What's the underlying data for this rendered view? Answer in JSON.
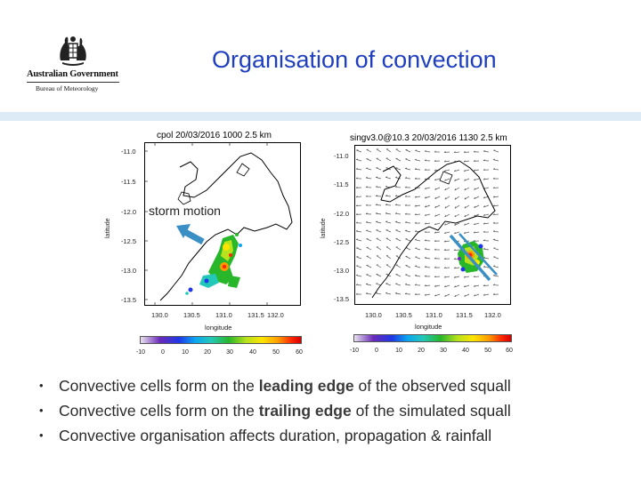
{
  "logo": {
    "name": "Australian Government",
    "agency": "Bureau of Meteorology",
    "icon": "coat-of-arms-icon"
  },
  "slide": {
    "title": "Organisation of convection"
  },
  "figures": {
    "left": {
      "title": "cpol 20/03/2016 1000 2.5 km",
      "ylabel": "latitude",
      "xlabel": "longitude",
      "yticks": [
        "-11.0",
        "-11.5",
        "-12.0",
        "-12.5",
        "-13.0",
        "-13.5"
      ],
      "xticks": [
        "130.0",
        "130.5",
        "131.0",
        "131.5",
        "132.0"
      ],
      "annotation": "storm motion"
    },
    "right": {
      "title": "singv3.0@10.3 20/03/2016 1130 2.5 km",
      "ylabel": "latitude",
      "xlabel": "longitude",
      "yticks": [
        "-11.0",
        "-11.5",
        "-12.0",
        "-12.5",
        "-13.0",
        "-13.5"
      ],
      "xticks": [
        "130.0",
        "130.5",
        "131.0",
        "131.5",
        "132.0"
      ]
    },
    "colorbar_ticks": [
      "-10",
      "0",
      "10",
      "20",
      "30",
      "40",
      "50",
      "60"
    ]
  },
  "bullets": [
    {
      "pre": "Convective cells form on the ",
      "bold": "leading edge",
      "post": " of the observed squall"
    },
    {
      "pre": "Convective cells form on the ",
      "bold": "trailing edge",
      "post": " of the simulated squall"
    },
    {
      "pre": "Convective organisation affects duration, propagation & rainfall",
      "bold": "",
      "post": ""
    }
  ],
  "colors": {
    "title": "#1f3fbf",
    "band": "#dcebf5",
    "arrow": "#3a8fc4"
  }
}
